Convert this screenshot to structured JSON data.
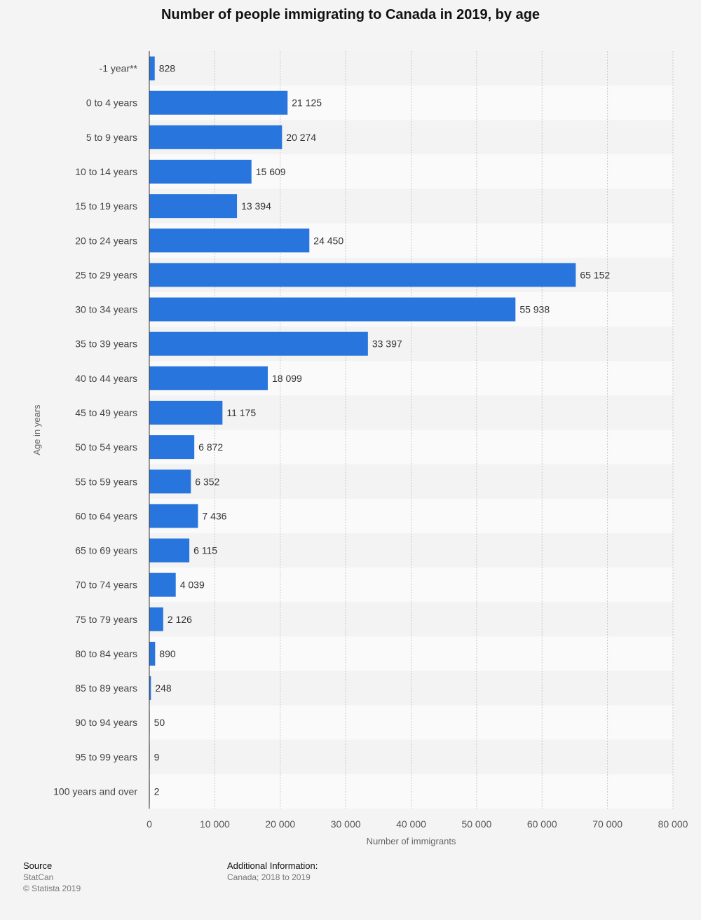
{
  "chart_data": {
    "type": "bar",
    "orientation": "horizontal",
    "title": "Number of people immigrating to Canada in 2019, by age",
    "xlabel": "Number of immigrants",
    "ylabel": "Age in years",
    "categories": [
      "-1 year**",
      "0 to 4 years",
      "5 to 9 years",
      "10 to 14 years",
      "15 to 19 years",
      "20 to 24 years",
      "25 to 29 years",
      "30 to 34 years",
      "35 to 39 years",
      "40 to 44 years",
      "45 to 49 years",
      "50 to 54 years",
      "55 to 59 years",
      "60 to 64 years",
      "65 to 69 years",
      "70 to 74 years",
      "75 to 79 years",
      "80 to 84 years",
      "85 to 89 years",
      "90 to 94 years",
      "95 to 99 years",
      "100 years and over"
    ],
    "values": [
      828,
      21125,
      20274,
      15609,
      13394,
      24450,
      65152,
      55938,
      33397,
      18099,
      11175,
      6872,
      6352,
      7436,
      6115,
      4039,
      2126,
      890,
      248,
      50,
      9,
      2
    ],
    "value_labels": [
      "828",
      "21 125",
      "20 274",
      "15 609",
      "13 394",
      "24 450",
      "65 152",
      "55 938",
      "33 397",
      "18 099",
      "11 175",
      "6 872",
      "6 352",
      "7 436",
      "6 115",
      "4 039",
      "2 126",
      "890",
      "248",
      "50",
      "9",
      "2"
    ],
    "xlim": [
      0,
      80000
    ],
    "xticks": [
      0,
      10000,
      20000,
      30000,
      40000,
      50000,
      60000,
      70000,
      80000
    ],
    "xtick_labels": [
      "0",
      "10 000",
      "20 000",
      "30 000",
      "40 000",
      "50 000",
      "60 000",
      "70 000",
      "80 000"
    ],
    "grid": true,
    "bar_color": "#2876dd"
  },
  "footer": {
    "source_heading": "Source",
    "source_name": "StatCan",
    "copyright": "© Statista 2019",
    "info_heading": "Additional Information:",
    "info_text": "Canada; 2018 to 2019"
  }
}
